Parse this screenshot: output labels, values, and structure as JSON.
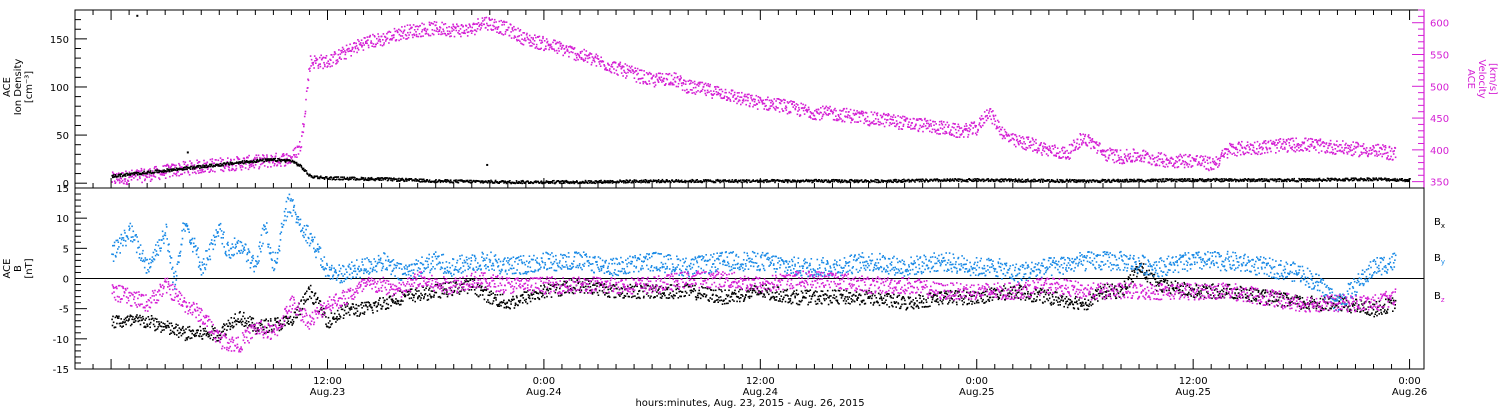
{
  "colors": {
    "black": "#000000",
    "magenta": "#d41fd4",
    "blue": "#1a8ae6"
  },
  "chart_data": [
    {
      "type": "scatter",
      "panel": "top",
      "left_axis": {
        "label_lines": [
          "ACE",
          "Ion Density",
          "[cm⁻³]"
        ],
        "ylim": [
          -5,
          180
        ],
        "ticks": [
          0,
          50,
          100,
          150
        ]
      },
      "right_axis": {
        "label_lines": [
          "ACE",
          "Velocity",
          "[km/s]"
        ],
        "ylim": [
          340,
          620
        ],
        "ticks": [
          350,
          400,
          450,
          500,
          550,
          600
        ]
      },
      "series": [
        {
          "name": "",
          "axis": "left",
          "color": "black",
          "points": [
            [
              0,
              8
            ],
            [
              2,
              12
            ],
            [
              4,
              16
            ],
            [
              6,
              20
            ],
            [
              8,
              24
            ],
            [
              9,
              25
            ],
            [
              10,
              24
            ],
            [
              10.5,
              18
            ],
            [
              11,
              8
            ],
            [
              12,
              6
            ],
            [
              15,
              5
            ],
            [
              18,
              3
            ],
            [
              22,
              2
            ],
            [
              26,
              2
            ],
            [
              30,
              3
            ],
            [
              36,
              3
            ],
            [
              42,
              3
            ],
            [
              48,
              4
            ],
            [
              54,
              3
            ],
            [
              60,
              4
            ],
            [
              66,
              4
            ],
            [
              70,
              5
            ],
            [
              72,
              4
            ]
          ],
          "outliers": [
            [
              1.4,
              175
            ],
            [
              4.2,
              33
            ],
            [
              20.8,
              20
            ]
          ]
        },
        {
          "name": "",
          "axis": "right",
          "color": "magenta",
          "points": [
            [
              0,
              355
            ],
            [
              2,
              362
            ],
            [
              4,
              372
            ],
            [
              6,
              378
            ],
            [
              8,
              382
            ],
            [
              10,
              388
            ],
            [
              10.5,
              410
            ],
            [
              11,
              540
            ],
            [
              12,
              540
            ],
            [
              13,
              555
            ],
            [
              14,
              570
            ],
            [
              15,
              575
            ],
            [
              16,
              585
            ],
            [
              17,
              590
            ],
            [
              18,
              592
            ],
            [
              19,
              590
            ],
            [
              20,
              590
            ],
            [
              20.5,
              603
            ],
            [
              21,
              600
            ],
            [
              22,
              590
            ],
            [
              23,
              575
            ],
            [
              24,
              568
            ],
            [
              25,
              560
            ],
            [
              26,
              550
            ],
            [
              27,
              540
            ],
            [
              28,
              530
            ],
            [
              29,
              520
            ],
            [
              30,
              510
            ],
            [
              31,
              515
            ],
            [
              32,
              500
            ],
            [
              33,
              495
            ],
            [
              34,
              490
            ],
            [
              35,
              480
            ],
            [
              36,
              475
            ],
            [
              37,
              472
            ],
            [
              38,
              465
            ],
            [
              39,
              460
            ],
            [
              40,
              458
            ],
            [
              41,
              455
            ],
            [
              42,
              450
            ],
            [
              43,
              448
            ],
            [
              44,
              443
            ],
            [
              45,
              440
            ],
            [
              46,
              436
            ],
            [
              47,
              430
            ],
            [
              48,
              435
            ],
            [
              48.6,
              462
            ],
            [
              49.5,
              425
            ],
            [
              50,
              415
            ],
            [
              51,
              410
            ],
            [
              52,
              400
            ],
            [
              53,
              395
            ],
            [
              53.8,
              420
            ],
            [
              54.5,
              410
            ],
            [
              55,
              395
            ],
            [
              56,
              390
            ],
            [
              57,
              392
            ],
            [
              58,
              386
            ],
            [
              59,
              384
            ],
            [
              60,
              385
            ],
            [
              61,
              378
            ],
            [
              61.5,
              388
            ],
            [
              62,
              402
            ],
            [
              63,
              404
            ],
            [
              64,
              406
            ],
            [
              65,
              408
            ],
            [
              66,
              410
            ],
            [
              67,
              407
            ],
            [
              68,
              405
            ],
            [
              69,
              402
            ],
            [
              70,
              400
            ],
            [
              71.2,
              395
            ]
          ]
        }
      ]
    },
    {
      "type": "scatter",
      "panel": "bottom",
      "left_axis": {
        "label_lines": [
          "ACE",
          "B",
          "[nT]"
        ],
        "ylim": [
          -15,
          15
        ],
        "ticks": [
          -15,
          -10,
          -5,
          0,
          5,
          10,
          15
        ]
      },
      "zero_line": true,
      "legend": [
        {
          "label": "B",
          "sub": "x",
          "color": "black"
        },
        {
          "label": "B",
          "sub": "y",
          "color": "blue"
        },
        {
          "label": "B",
          "sub": "z",
          "color": "magenta"
        }
      ],
      "series": [
        {
          "name": "Bx",
          "color": "black",
          "points": [
            [
              0,
              -7
            ],
            [
              2,
              -7
            ],
            [
              4,
              -9
            ],
            [
              6,
              -9
            ],
            [
              7,
              -6
            ],
            [
              8,
              -8
            ],
            [
              10,
              -7
            ],
            [
              11,
              -2
            ],
            [
              12,
              -7
            ],
            [
              13,
              -5
            ],
            [
              14,
              -5
            ],
            [
              15,
              -4
            ],
            [
              16,
              -3
            ],
            [
              18,
              -2
            ],
            [
              20,
              -1
            ],
            [
              21,
              -3
            ],
            [
              22,
              -4
            ],
            [
              24,
              -2
            ],
            [
              26,
              -1
            ],
            [
              28,
              -2
            ],
            [
              30,
              -2
            ],
            [
              32,
              -2
            ],
            [
              34,
              -3
            ],
            [
              36,
              -2
            ],
            [
              38,
              -3
            ],
            [
              40,
              -3
            ],
            [
              42,
              -3
            ],
            [
              44,
              -4
            ],
            [
              46,
              -3
            ],
            [
              48,
              -3
            ],
            [
              50,
              -2
            ],
            [
              52,
              -3
            ],
            [
              54,
              -4
            ],
            [
              55,
              -2
            ],
            [
              56,
              -2
            ],
            [
              57,
              2
            ],
            [
              58,
              -1
            ],
            [
              60,
              -2
            ],
            [
              62,
              -2
            ],
            [
              64,
              -3
            ],
            [
              66,
              -4
            ],
            [
              68,
              -4
            ],
            [
              70,
              -5
            ],
            [
              71.2,
              -4
            ]
          ]
        },
        {
          "name": "By",
          "color": "blue",
          "points": [
            [
              0,
              4
            ],
            [
              1,
              8
            ],
            [
              2,
              2
            ],
            [
              3,
              8
            ],
            [
              3.5,
              -1
            ],
            [
              4,
              10
            ],
            [
              5,
              2
            ],
            [
              6,
              8
            ],
            [
              6.5,
              4
            ],
            [
              7,
              6
            ],
            [
              8,
              2
            ],
            [
              8.5,
              9
            ],
            [
              9,
              2
            ],
            [
              9.8,
              13
            ],
            [
              10.5,
              9
            ],
            [
              11,
              7
            ],
            [
              12,
              1
            ],
            [
              13,
              1
            ],
            [
              14,
              2
            ],
            [
              15,
              3
            ],
            [
              16,
              1
            ],
            [
              17,
              2
            ],
            [
              18,
              3
            ],
            [
              19,
              2
            ],
            [
              20,
              3
            ],
            [
              21,
              3
            ],
            [
              22,
              2
            ],
            [
              24,
              3
            ],
            [
              26,
              3
            ],
            [
              28,
              2
            ],
            [
              30,
              3
            ],
            [
              32,
              2
            ],
            [
              34,
              3
            ],
            [
              36,
              3
            ],
            [
              38,
              2
            ],
            [
              40,
              2
            ],
            [
              42,
              3
            ],
            [
              44,
              2
            ],
            [
              46,
              3
            ],
            [
              48,
              2
            ],
            [
              49,
              2
            ],
            [
              50,
              1
            ],
            [
              52,
              2
            ],
            [
              54,
              3
            ],
            [
              56,
              3
            ],
            [
              58,
              2
            ],
            [
              60,
              3
            ],
            [
              62,
              3
            ],
            [
              64,
              2
            ],
            [
              66,
              1
            ],
            [
              67,
              -1
            ],
            [
              68,
              -4
            ],
            [
              69,
              -1
            ],
            [
              70,
              2
            ],
            [
              71.2,
              3
            ]
          ]
        },
        {
          "name": "Bz",
          "color": "magenta",
          "points": [
            [
              0,
              -2
            ],
            [
              1,
              -3
            ],
            [
              2,
              -4
            ],
            [
              3,
              -1
            ],
            [
              4,
              -4
            ],
            [
              5,
              -6
            ],
            [
              6,
              -10
            ],
            [
              7,
              -11
            ],
            [
              8,
              -8
            ],
            [
              9,
              -9
            ],
            [
              10,
              -4
            ],
            [
              11,
              -7
            ],
            [
              12,
              -4
            ],
            [
              13,
              -3
            ],
            [
              14,
              -1
            ],
            [
              15,
              -1
            ],
            [
              16,
              -2
            ],
            [
              17,
              0
            ],
            [
              18,
              -1
            ],
            [
              19,
              -1
            ],
            [
              20,
              0
            ],
            [
              22,
              -1
            ],
            [
              24,
              -1
            ],
            [
              26,
              -1
            ],
            [
              28,
              -1
            ],
            [
              30,
              -1
            ],
            [
              32,
              0
            ],
            [
              34,
              0
            ],
            [
              36,
              -1
            ],
            [
              38,
              0
            ],
            [
              40,
              0
            ],
            [
              42,
              -1
            ],
            [
              44,
              -1
            ],
            [
              46,
              -2
            ],
            [
              48,
              -2
            ],
            [
              50,
              -2
            ],
            [
              52,
              -1
            ],
            [
              54,
              -2
            ],
            [
              56,
              -2
            ],
            [
              58,
              -2
            ],
            [
              60,
              -2
            ],
            [
              62,
              -2
            ],
            [
              64,
              -3
            ],
            [
              66,
              -4
            ],
            [
              68,
              -4
            ],
            [
              70,
              -4
            ],
            [
              71.2,
              -3
            ]
          ]
        }
      ]
    }
  ],
  "x_axis": {
    "range_hours": [
      -2,
      72.8
    ],
    "tick_labels": [
      {
        "h": 12,
        "time": "12:00",
        "date": "Aug.23"
      },
      {
        "h": 24,
        "time": "0:00",
        "date": "Aug.24"
      },
      {
        "h": 36,
        "time": "12:00",
        "date": "Aug.24"
      },
      {
        "h": 48,
        "time": "0:00",
        "date": "Aug.25"
      },
      {
        "h": 60,
        "time": "12:00",
        "date": "Aug.25"
      },
      {
        "h": 72,
        "time": "0:00",
        "date": "Aug.26"
      }
    ],
    "title": "hours:minutes, Aug. 23, 2015 - Aug. 26, 2015"
  }
}
